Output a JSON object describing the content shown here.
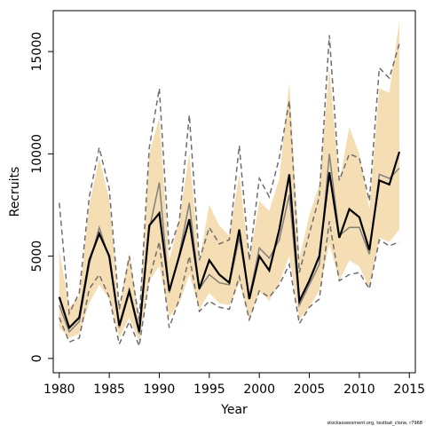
{
  "chart_data": {
    "type": "line",
    "xlabel": "Year",
    "ylabel": "Recruits",
    "footnote": "stockassessment.org, testbat_clone, r7968",
    "xlim": [
      1979.4,
      2015.6
    ],
    "ylim": [
      -700,
      17000
    ],
    "x_ticks": [
      1980,
      1985,
      1990,
      1995,
      2000,
      2005,
      2010,
      2015
    ],
    "y_ticks": [
      0,
      5000,
      10000,
      15000
    ],
    "colors": {
      "band": "#f5deb3",
      "estimate": "#000000",
      "previous": "#808080",
      "interval": "#6e6e6e",
      "frame": "#000000"
    },
    "x": [
      1980,
      1981,
      1982,
      1983,
      1984,
      1985,
      1986,
      1987,
      1988,
      1989,
      1990,
      1991,
      1992,
      1993,
      1994,
      1995,
      1996,
      1997,
      1998,
      1999,
      2000,
      2001,
      2002,
      2003,
      2004,
      2005,
      2006,
      2007,
      2008,
      2009,
      2010,
      2011,
      2012,
      2013,
      2014
    ],
    "series": [
      {
        "role": "band",
        "upper": [
          5300,
          2500,
          3000,
          7500,
          9800,
          7800,
          2400,
          5200,
          1900,
          10000,
          11800,
          4800,
          6800,
          10000,
          4800,
          7500,
          6500,
          6000,
          9000,
          4800,
          7700,
          7200,
          8800,
          13500,
          4900,
          7000,
          8500,
          14200,
          8600,
          11300,
          10000,
          7300,
          13200,
          13000,
          16500
        ],
        "lower": [
          1500,
          1000,
          1200,
          2700,
          3600,
          2900,
          1000,
          2000,
          800,
          3800,
          4500,
          2000,
          2700,
          4100,
          2400,
          3200,
          2700,
          2600,
          3700,
          1900,
          3300,
          2800,
          3700,
          5000,
          1900,
          2500,
          3300,
          5600,
          3800,
          4800,
          4500,
          3400,
          5900,
          5700,
          6300
        ]
      },
      {
        "role": "estimate",
        "values": [
          3000,
          1500,
          2000,
          4800,
          6100,
          5000,
          1600,
          3300,
          1300,
          6500,
          7100,
          3300,
          5000,
          6800,
          3400,
          4800,
          4100,
          3700,
          6300,
          2900,
          5000,
          4300,
          6300,
          9000,
          2800,
          3800,
          5000,
          9100,
          5900,
          7300,
          6900,
          5300,
          8700,
          8500,
          10100
        ]
      },
      {
        "role": "previous",
        "values": [
          2600,
          1300,
          1800,
          4600,
          6400,
          4900,
          1500,
          3200,
          1200,
          6300,
          8600,
          3200,
          5100,
          7600,
          3400,
          4100,
          3700,
          3600,
          5900,
          3000,
          5400,
          4900,
          5800,
          8000,
          2600,
          3600,
          4600,
          10000,
          6000,
          6400,
          6400,
          5100,
          9000,
          8800,
          9300
        ]
      },
      {
        "role": "interval-upper",
        "values": [
          7600,
          2200,
          3200,
          7900,
          10300,
          8300,
          2400,
          5000,
          1800,
          10300,
          13200,
          5300,
          6700,
          11900,
          4800,
          6400,
          5600,
          5800,
          10400,
          4800,
          8800,
          7900,
          9800,
          12600,
          4200,
          6100,
          7900,
          15800,
          8700,
          10000,
          9800,
          7700,
          14200,
          13700,
          15400
        ]
      },
      {
        "role": "interval-lower",
        "values": [
          2000,
          800,
          1000,
          3400,
          4100,
          3000,
          700,
          1800,
          600,
          3900,
          5700,
          1500,
          2900,
          5000,
          2300,
          2800,
          2500,
          2400,
          4000,
          1900,
          3300,
          3000,
          3600,
          4600,
          1700,
          2500,
          2900,
          6700,
          3800,
          4100,
          4200,
          3400,
          5800,
          5500,
          5700
        ]
      }
    ]
  }
}
